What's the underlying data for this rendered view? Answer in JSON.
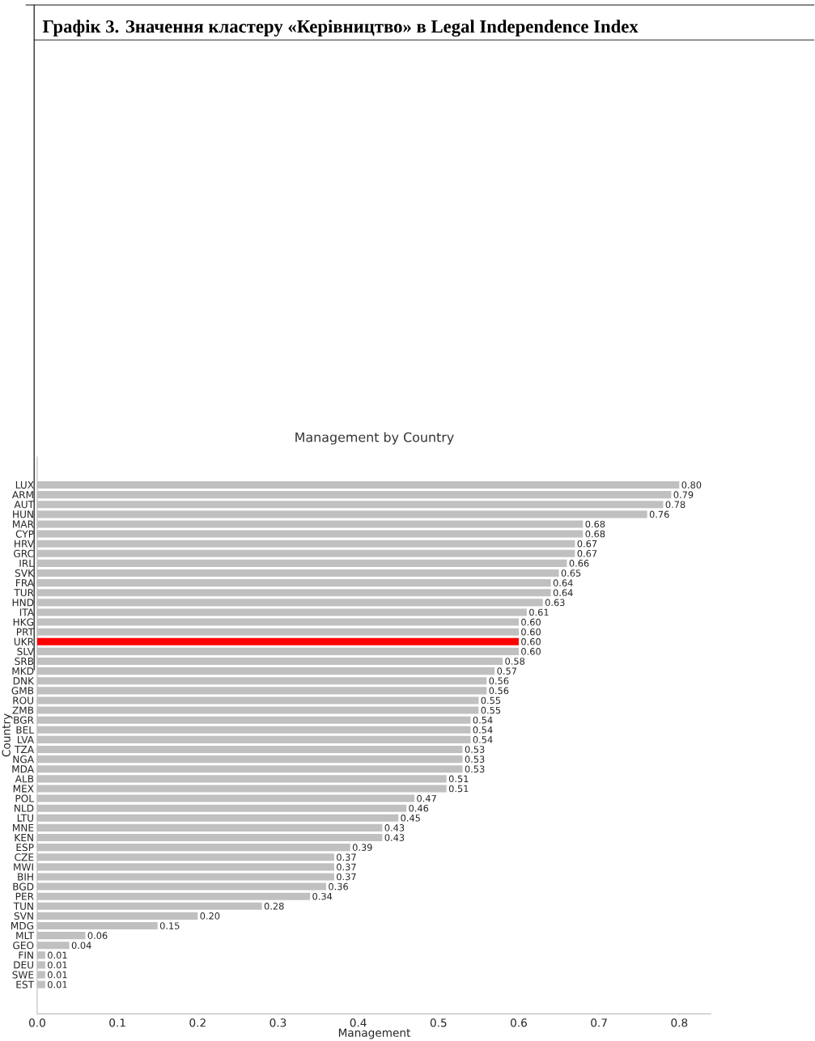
{
  "chart_data": {
    "type": "bar",
    "orientation": "horizontal",
    "title": "Графік 3. Значення кластеру «Керівництво» в Legal Independence Index",
    "subtitle": "Management by Country",
    "xlabel": "Management",
    "ylabel": "Country",
    "categories": [
      "LUX",
      "ARM",
      "AUT",
      "HUN",
      "MAR",
      "CYP",
      "HRV",
      "GRC",
      "IRL",
      "SVK",
      "FRA",
      "TUR",
      "HND",
      "ITA",
      "HKG",
      "PRT",
      "UKR",
      "SLV",
      "SRB",
      "MKD",
      "DNK",
      "GMB",
      "ROU",
      "ZMB",
      "BGR",
      "BEL",
      "LVA",
      "TZA",
      "NGA",
      "MDA",
      "ALB",
      "MEX",
      "POL",
      "NLD",
      "LTU",
      "MNE",
      "KEN",
      "ESP",
      "CZE",
      "MWI",
      "BIH",
      "BGD",
      "PER",
      "TUN",
      "SVN",
      "MDG",
      "MLT",
      "GEO",
      "FIN",
      "DEU",
      "SWE",
      "EST"
    ],
    "values": [
      0.8,
      0.79,
      0.78,
      0.76,
      0.68,
      0.68,
      0.67,
      0.67,
      0.66,
      0.65,
      0.64,
      0.64,
      0.63,
      0.61,
      0.6,
      0.6,
      0.6,
      0.6,
      0.58,
      0.57,
      0.56,
      0.56,
      0.55,
      0.55,
      0.54,
      0.54,
      0.54,
      0.53,
      0.53,
      0.53,
      0.51,
      0.51,
      0.47,
      0.46,
      0.45,
      0.43,
      0.43,
      0.39,
      0.37,
      0.37,
      0.37,
      0.36,
      0.34,
      0.28,
      0.2,
      0.15,
      0.06,
      0.04,
      0.01,
      0.01,
      0.01,
      0.01
    ],
    "value_labels": [
      "0.80",
      "0.79",
      "0.78",
      "0.76",
      "0.68",
      "0.68",
      "0.67",
      "0.67",
      "0.66",
      "0.65",
      "0.64",
      "0.64",
      "0.63",
      "0.61",
      "0.60",
      "0.60",
      "0.60",
      "0.60",
      "0.58",
      "0.57",
      "0.56",
      "0.56",
      "0.55",
      "0.55",
      "0.54",
      "0.54",
      "0.54",
      "0.53",
      "0.53",
      "0.53",
      "0.51",
      "0.51",
      "0.47",
      "0.46",
      "0.45",
      "0.43",
      "0.43",
      "0.39",
      "0.37",
      "0.37",
      "0.37",
      "0.36",
      "0.34",
      "0.28",
      "0.20",
      "0.15",
      "0.06",
      "0.04",
      "0.01",
      "0.01",
      "0.01",
      "0.01"
    ],
    "colors": [
      "#c0c0c0",
      "#c0c0c0",
      "#c0c0c0",
      "#c0c0c0",
      "#c0c0c0",
      "#c0c0c0",
      "#c0c0c0",
      "#c0c0c0",
      "#c0c0c0",
      "#c0c0c0",
      "#c0c0c0",
      "#c0c0c0",
      "#c0c0c0",
      "#c0c0c0",
      "#c0c0c0",
      "#c0c0c0",
      "#ff0000",
      "#c0c0c0",
      "#c0c0c0",
      "#c0c0c0",
      "#c0c0c0",
      "#c0c0c0",
      "#c0c0c0",
      "#c0c0c0",
      "#c0c0c0",
      "#c0c0c0",
      "#c0c0c0",
      "#c0c0c0",
      "#c0c0c0",
      "#c0c0c0",
      "#c0c0c0",
      "#c0c0c0",
      "#c0c0c0",
      "#c0c0c0",
      "#c0c0c0",
      "#c0c0c0",
      "#c0c0c0",
      "#c0c0c0",
      "#c0c0c0",
      "#c0c0c0",
      "#c0c0c0",
      "#c0c0c0",
      "#c0c0c0",
      "#c0c0c0",
      "#c0c0c0",
      "#c0c0c0",
      "#c0c0c0",
      "#c0c0c0",
      "#c0c0c0",
      "#c0c0c0",
      "#c0c0c0",
      "#c0c0c0"
    ],
    "xlim": [
      0,
      0.84
    ],
    "xticks": [
      {
        "value": 0,
        "label": "0.0"
      },
      0.1,
      0.2,
      0.3,
      0.4,
      0.5,
      0.6,
      0.7,
      0.8
    ]
  }
}
